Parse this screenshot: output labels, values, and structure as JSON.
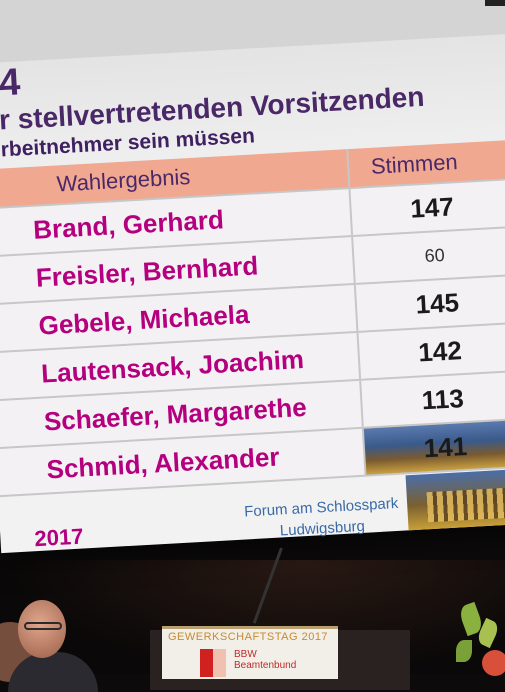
{
  "slide": {
    "number": "4",
    "title": "r stellvertretenden Vorsitzenden",
    "subtitle": "rbeitnehmer sein müssen",
    "table": {
      "headers": [
        "Wahlergebnis",
        "Stimmen"
      ],
      "rows": [
        {
          "name": "Brand, Gerhard",
          "votes": "147"
        },
        {
          "name": "Freisler, Bernhard",
          "votes": "60"
        },
        {
          "name": "Gebele, Michaela",
          "votes": "145"
        },
        {
          "name": "Lautensack, Joachim",
          "votes": "142"
        },
        {
          "name": "Schaefer, Margarethe",
          "votes": "113"
        },
        {
          "name": "Schmid, Alexander",
          "votes": "141"
        }
      ]
    },
    "footer": {
      "year": "2017",
      "venue_line1": "Forum am Schlosspark",
      "venue_line2": "Ludwigsburg"
    }
  },
  "podium": {
    "event": "GEWERKSCHAFTSTAG 2017",
    "org_line1": "BBW",
    "org_line2": "Beamtenbund"
  },
  "colors": {
    "name_magenta": "#b4007e",
    "title_purple": "#4a2868",
    "header_salmon": "#f0a890",
    "venue_blue": "#3a6aa8"
  }
}
